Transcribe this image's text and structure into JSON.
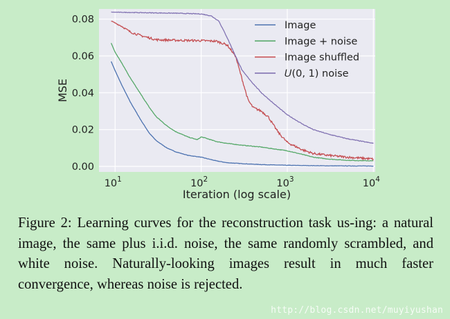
{
  "chart_data": {
    "type": "line",
    "xlabel": "Iteration (log scale)",
    "ylabel": "MSE",
    "x_scale": "log",
    "xlim": [
      6.5,
      10500
    ],
    "ylim": [
      -0.003,
      0.0855
    ],
    "x_ticks": [
      {
        "value": 10,
        "base": "10",
        "exp": "1"
      },
      {
        "value": 100,
        "base": "10",
        "exp": "2"
      },
      {
        "value": 1000,
        "base": "10",
        "exp": "3"
      },
      {
        "value": 10000,
        "base": "10",
        "exp": "4"
      }
    ],
    "y_ticks": [
      {
        "value": 0.0,
        "label": "0.00"
      },
      {
        "value": 0.02,
        "label": "0.02"
      },
      {
        "value": 0.04,
        "label": "0.04"
      },
      {
        "value": 0.06,
        "label": "0.06"
      },
      {
        "value": 0.08,
        "label": "0.08"
      }
    ],
    "grid": true,
    "legend_position": "top-right",
    "series": [
      {
        "name": "Image",
        "color": "#4c72b0",
        "noise": 0.0001,
        "points": [
          [
            9,
            0.057
          ],
          [
            10,
            0.052
          ],
          [
            12,
            0.044
          ],
          [
            15,
            0.035
          ],
          [
            20,
            0.025
          ],
          [
            25,
            0.018
          ],
          [
            30,
            0.014
          ],
          [
            40,
            0.01
          ],
          [
            50,
            0.008
          ],
          [
            70,
            0.006
          ],
          [
            100,
            0.005
          ],
          [
            150,
            0.003
          ],
          [
            200,
            0.002
          ],
          [
            300,
            0.0015
          ],
          [
            500,
            0.001
          ],
          [
            1000,
            0.0006
          ],
          [
            3000,
            0.0003
          ],
          [
            10000,
            0.0002
          ]
        ]
      },
      {
        "name": "Image + noise",
        "color": "#55a868",
        "noise": 0.00015,
        "points": [
          [
            9,
            0.067
          ],
          [
            10,
            0.062
          ],
          [
            12,
            0.056
          ],
          [
            15,
            0.048
          ],
          [
            20,
            0.039
          ],
          [
            25,
            0.032
          ],
          [
            30,
            0.027
          ],
          [
            40,
            0.022
          ],
          [
            50,
            0.019
          ],
          [
            70,
            0.016
          ],
          [
            90,
            0.0145
          ],
          [
            100,
            0.016
          ],
          [
            110,
            0.0155
          ],
          [
            150,
            0.0135
          ],
          [
            200,
            0.0125
          ],
          [
            300,
            0.0115
          ],
          [
            500,
            0.0105
          ],
          [
            700,
            0.0095
          ],
          [
            1000,
            0.0085
          ],
          [
            1500,
            0.0065
          ],
          [
            2000,
            0.005
          ],
          [
            3000,
            0.004
          ],
          [
            5000,
            0.0033
          ],
          [
            10000,
            0.003
          ]
        ]
      },
      {
        "name": "Image shuffled",
        "color": "#c44e52",
        "noise": 0.0006,
        "points": [
          [
            9,
            0.079
          ],
          [
            12,
            0.076
          ],
          [
            15,
            0.073
          ],
          [
            20,
            0.071
          ],
          [
            30,
            0.0688
          ],
          [
            50,
            0.0685
          ],
          [
            100,
            0.0683
          ],
          [
            150,
            0.068
          ],
          [
            200,
            0.066
          ],
          [
            250,
            0.06
          ],
          [
            300,
            0.047
          ],
          [
            350,
            0.036
          ],
          [
            400,
            0.032
          ],
          [
            500,
            0.03
          ],
          [
            600,
            0.027
          ],
          [
            700,
            0.022
          ],
          [
            800,
            0.018
          ],
          [
            1000,
            0.013
          ],
          [
            1500,
            0.009
          ],
          [
            2000,
            0.007
          ],
          [
            3000,
            0.006
          ],
          [
            5000,
            0.005
          ],
          [
            10000,
            0.004
          ]
        ]
      },
      {
        "name": "𝑈(0, 1) noise",
        "color": "#8172b2",
        "noise": 0.00018,
        "points": [
          [
            9,
            0.0838
          ],
          [
            20,
            0.0835
          ],
          [
            50,
            0.0832
          ],
          [
            100,
            0.0828
          ],
          [
            130,
            0.0818
          ],
          [
            160,
            0.079
          ],
          [
            200,
            0.07
          ],
          [
            250,
            0.06
          ],
          [
            300,
            0.052
          ],
          [
            400,
            0.045
          ],
          [
            500,
            0.04
          ],
          [
            700,
            0.034
          ],
          [
            1000,
            0.028
          ],
          [
            1500,
            0.023
          ],
          [
            2000,
            0.02
          ],
          [
            3000,
            0.0175
          ],
          [
            5000,
            0.015
          ],
          [
            10000,
            0.0125
          ]
        ]
      }
    ]
  },
  "caption": "Figure 2: Learning curves for the reconstruction task us-ing: a natural image, the same plus i.i.d. noise, the same randomly scrambled, and white noise. Naturally-looking images result in much faster convergence, whereas noise is rejected.",
  "watermark": "http://blog.csdn.net/muyiyushan"
}
